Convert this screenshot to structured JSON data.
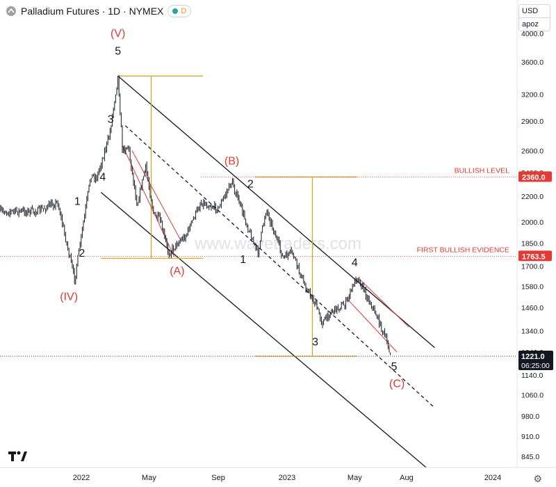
{
  "header": {
    "title": "Palladium Futures · 1D · NYMEX",
    "badge_letter": "D"
  },
  "currency_selector": {
    "currency": "USD",
    "mode": "apoz"
  },
  "watermark": "www.wavetraders.com",
  "colors": {
    "candle": "#131722",
    "wave_label": "#e53935",
    "channel": "#131722",
    "fib_line": "#d4a017",
    "level_line": "#e53935",
    "price_tag_bg": "#e53935",
    "current_tag_bg": "#131722"
  },
  "chart_data": {
    "type": "candlestick",
    "symbol": "Palladium Futures",
    "timeframe": "1D",
    "exchange": "NYMEX",
    "x_tick_labels": [
      "2022",
      "May",
      "Sep",
      "2023",
      "May",
      "Aug",
      "2024"
    ],
    "y_tick_labels": [
      "4000.0",
      "3600.0",
      "3200.0",
      "2900.0",
      "2600.0",
      "2400.0",
      "2200.0",
      "2000.0",
      "1850.0",
      "1700.0",
      "1580.0",
      "1460.0",
      "1340.0",
      "1240.0",
      "1140.0",
      "1060.0",
      "980.0",
      "910.0",
      "845.0"
    ],
    "y_scale": "log",
    "price_path": [
      {
        "date": "2021-10-15",
        "price": 2080
      },
      {
        "date": "2021-11-20",
        "price": 2150
      },
      {
        "date": "2021-12-10",
        "price": 1780
      },
      {
        "date": "2021-12-20",
        "price": 1620
      },
      {
        "date": "2022-01-05",
        "price": 2000
      },
      {
        "date": "2022-01-18",
        "price": 2380
      },
      {
        "date": "2022-01-28",
        "price": 2350
      },
      {
        "date": "2022-02-20",
        "price": 2750
      },
      {
        "date": "2022-03-07",
        "price": 3420
      },
      {
        "date": "2022-03-15",
        "price": 2600
      },
      {
        "date": "2022-03-25",
        "price": 2650
      },
      {
        "date": "2022-04-10",
        "price": 2130
      },
      {
        "date": "2022-04-25",
        "price": 2450
      },
      {
        "date": "2022-05-10",
        "price": 2050
      },
      {
        "date": "2022-05-20",
        "price": 2020
      },
      {
        "date": "2022-06-05",
        "price": 1780
      },
      {
        "date": "2022-06-20",
        "price": 1850
      },
      {
        "date": "2022-07-05",
        "price": 1900
      },
      {
        "date": "2022-08-01",
        "price": 2150
      },
      {
        "date": "2022-09-01",
        "price": 2100
      },
      {
        "date": "2022-09-25",
        "price": 2320
      },
      {
        "date": "2022-10-20",
        "price": 2000
      },
      {
        "date": "2022-11-10",
        "price": 1780
      },
      {
        "date": "2022-11-25",
        "price": 2100
      },
      {
        "date": "2022-12-10",
        "price": 1920
      },
      {
        "date": "2022-12-25",
        "price": 1750
      },
      {
        "date": "2023-01-10",
        "price": 1790
      },
      {
        "date": "2023-01-30",
        "price": 1600
      },
      {
        "date": "2023-02-20",
        "price": 1480
      },
      {
        "date": "2023-03-05",
        "price": 1380
      },
      {
        "date": "2023-03-20",
        "price": 1440
      },
      {
        "date": "2023-04-15",
        "price": 1480
      },
      {
        "date": "2023-05-05",
        "price": 1640
      },
      {
        "date": "2023-05-20",
        "price": 1540
      },
      {
        "date": "2023-06-10",
        "price": 1410
      },
      {
        "date": "2023-06-25",
        "price": 1300
      },
      {
        "date": "2023-07-05",
        "price": 1221
      }
    ],
    "wave_labels": [
      {
        "text": "(V)",
        "date": "2022-03-07",
        "price": 3950,
        "color": "red"
      },
      {
        "text": "5",
        "date": "2022-03-07",
        "price": 3700,
        "color": "black"
      },
      {
        "text": "3",
        "date": "2022-02-22",
        "price": 2880,
        "color": "black"
      },
      {
        "text": "4",
        "date": "2022-02-08",
        "price": 2330,
        "color": "black"
      },
      {
        "text": "1",
        "date": "2021-12-25",
        "price": 2130,
        "color": "black"
      },
      {
        "text": "2",
        "date": "2022-01-02",
        "price": 1760,
        "color": "black"
      },
      {
        "text": "(IV)",
        "date": "2021-12-10",
        "price": 1500,
        "color": "red"
      },
      {
        "text": "(A)",
        "date": "2022-06-20",
        "price": 1650,
        "color": "red"
      },
      {
        "text": "(B)",
        "date": "2022-09-25",
        "price": 2470,
        "color": "red"
      },
      {
        "text": "2",
        "date": "2022-10-28",
        "price": 2270,
        "color": "black"
      },
      {
        "text": "1",
        "date": "2022-10-15",
        "price": 1720,
        "color": "black"
      },
      {
        "text": "4",
        "date": "2023-05-01",
        "price": 1700,
        "color": "black"
      },
      {
        "text": "3",
        "date": "2023-02-20",
        "price": 1270,
        "color": "black"
      },
      {
        "text": "5",
        "date": "2023-07-10",
        "price": 1160,
        "color": "black"
      },
      {
        "text": "(C)",
        "date": "2023-07-15",
        "price": 1090,
        "color": "red"
      }
    ],
    "levels": [
      {
        "label": "BULLISH LEVEL",
        "value": 2360.0,
        "value_label": "2360.0"
      },
      {
        "label": "FIRST BULLISH EVIDENCE",
        "value": 1763.5,
        "value_label": "1763.5"
      }
    ],
    "current_price": {
      "value": 1221.0,
      "value_label": "1221.0",
      "countdown": "06:25:00"
    }
  }
}
